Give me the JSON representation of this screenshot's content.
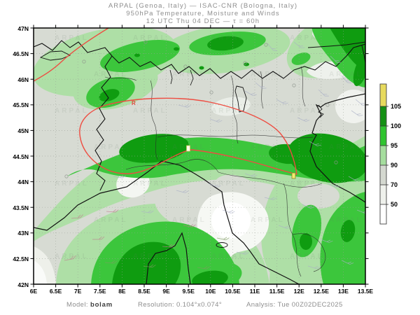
{
  "title": {
    "line1": "ARPAL (Genoa, Italy)  —  ISAC-CNR (Bologna, Italy)",
    "line2": "950hPa Temperature, Moisture and Winds",
    "line3": "12 UTC Thu 04 DEC  —  τ = 60h"
  },
  "footer": {
    "model_label": "Model: ",
    "model_value": "bolam",
    "resolution_label": "Resolution: ",
    "resolution_value": "0.104°x0.074°",
    "analysis_label": "Analysis: ",
    "analysis_value": "Tue 00Z02DEC2025"
  },
  "axes": {
    "lat_labels": [
      "47N",
      "46.5N",
      "46N",
      "45.5N",
      "45N",
      "44.5N",
      "44N",
      "43.5N",
      "43N",
      "42.5N",
      "42N"
    ],
    "lon_labels": [
      "6E",
      "6.5E",
      "7E",
      "7.5E",
      "8E",
      "8.5E",
      "9E",
      "9.5E",
      "10E",
      "10.5E",
      "11E",
      "11.5E",
      "12E",
      "12.5E",
      "13E",
      "13.5E"
    ]
  },
  "colorbar": {
    "labels": [
      "105",
      "100",
      "95",
      "90",
      "70",
      "50"
    ],
    "segment_colors_top_to_bottom": [
      "#e7da5e",
      "#149114",
      "#2fc42f",
      "#a5dd9e",
      "#d4d8d0",
      "#eff1ec",
      "#ffffff"
    ]
  },
  "map": {
    "watermark": "ARPAL",
    "contour_label": "R",
    "colors": {
      "background_gray": "#d7dbd3",
      "light_green_90": "#aedfa6",
      "medium_green_95": "#3cc63c",
      "dark_green_100": "#0f9c10",
      "dry_white": "#f6f8f4",
      "contour_red": "#ee4d42"
    }
  },
  "chart_data": {
    "type": "heatmap",
    "title": "950hPa Temperature, Moisture and Winds",
    "subtitle": "ARPAL (Genoa, Italy) — ISAC-CNR (Bologna, Italy)",
    "valid_time": "12 UTC Thu 04 DEC — τ = 60h",
    "model": "bolam",
    "resolution": "0.104°x0.074°",
    "analysis": "Tue 00Z02DEC2025",
    "x_axis": {
      "label": "longitude",
      "range_deg_E": [
        6,
        13.5
      ],
      "tick_step_deg": 0.5
    },
    "y_axis": {
      "label": "latitude",
      "range_deg_N": [
        42,
        47
      ],
      "tick_step_deg": 0.5
    },
    "grid": "dotted 0.5° graticule",
    "legend_position": "right colorbar",
    "colorbar_levels": [
      50,
      70,
      90,
      95,
      100,
      105
    ],
    "colorbar_colors_low_to_high": [
      "#ffffff",
      "#eff1ec",
      "#d4d8d0",
      "#a5dd9e",
      "#2fc42f",
      "#149114",
      "#e7da5e"
    ],
    "shaded_field": "moisture (relative humidity, %)",
    "overlays": [
      "red temperature contour (hairpin loop through Po valley and NW line over Alps)",
      "wind barbs",
      "two yellow station markers (~9.5E 44.6N and ~11.9E 44.1N)",
      "ARPAL watermark"
    ],
    "notable_features": [
      {
        "region": "Liguria–Emilia band ~44.2–44.8N",
        "value": ">100"
      },
      {
        "region": "NE Alps / top-right corner",
        "value": ">100"
      },
      {
        "region": "west of Corsica and Ligurian Sea",
        "value": "95–105"
      },
      {
        "region": "Alpine crest band 45.5–46.5N",
        "value": "90–100"
      },
      {
        "region": "inland Tuscany",
        "value": "<70"
      },
      {
        "region": "Alto Adige ~46.3N 12E",
        "value": "<70"
      },
      {
        "region": "Po valley plains",
        "value": "70–90 (gray)"
      }
    ]
  }
}
